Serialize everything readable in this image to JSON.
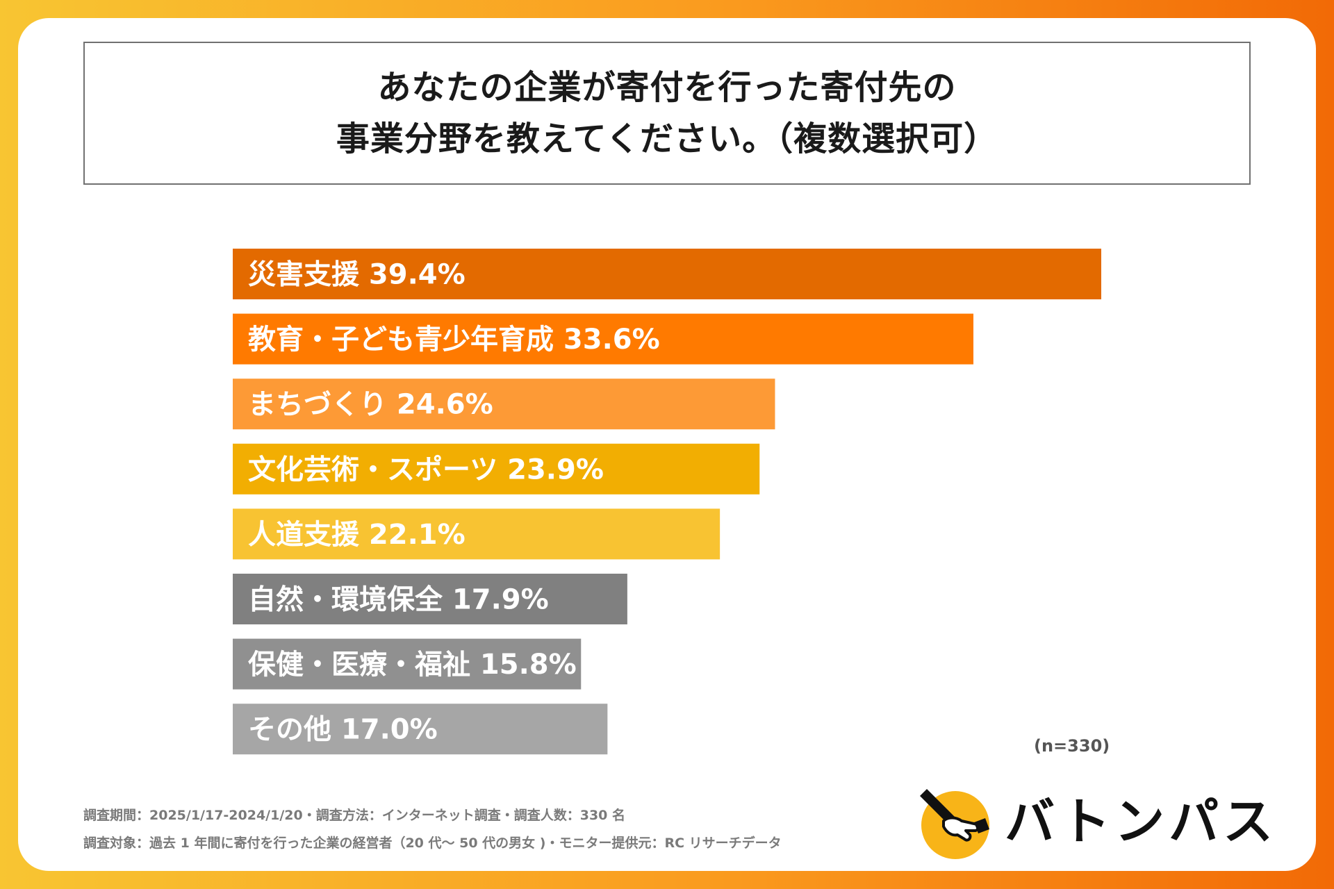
{
  "title_lines": [
    "あなたの企業が寄付を行った寄付先の",
    "事業分野を教えてください。（複数選択可）"
  ],
  "chart_data": {
    "type": "bar",
    "orientation": "horizontal",
    "categories": [
      "災害支援",
      "教育・子ども青少年育成",
      "まちづくり",
      "文化芸術・スポーツ",
      "人道支援",
      "自然・環境保全",
      "保健・医療・福祉",
      "その他"
    ],
    "values": [
      39.4,
      33.6,
      24.6,
      23.9,
      22.1,
      17.9,
      15.8,
      17.0
    ],
    "value_labels": [
      "39.4%",
      "33.6%",
      "24.6%",
      "23.9%",
      "22.1%",
      "17.9%",
      "15.8%",
      "17.0%"
    ],
    "colors": [
      "#e36a00",
      "#ff7a00",
      "#fd9a36",
      "#f2ae02",
      "#f8c332",
      "#808080",
      "#909090",
      "#a6a6a6"
    ],
    "xlim": [
      0,
      39.4
    ],
    "grid": false,
    "note": "(n=330)"
  },
  "footnotes": [
    "調査期間：2025/1/17-2024/1/20・調査方法：インターネット調査・調査人数：330 名",
    "調査対象：過去 1 年間に寄付を行った企業の経営者（20 代～ 50 代の男女 )・モニター提供元：RC リサーチデータ"
  ],
  "logo": {
    "text": "バトンパス",
    "icon": "baton-hand-icon",
    "icon_color": "#f8b418"
  }
}
